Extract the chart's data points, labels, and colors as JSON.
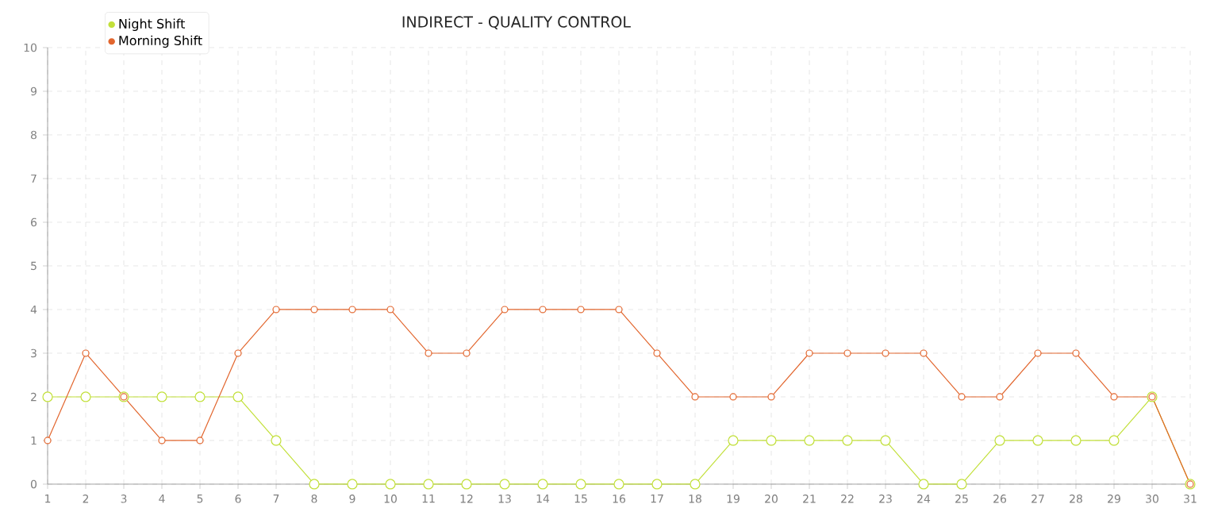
{
  "chart_data": {
    "type": "line",
    "title": "INDIRECT - QUALITY CONTROL",
    "x": [
      1,
      2,
      3,
      4,
      5,
      6,
      7,
      8,
      9,
      10,
      11,
      12,
      13,
      14,
      15,
      16,
      17,
      18,
      19,
      20,
      21,
      22,
      23,
      24,
      25,
      26,
      27,
      28,
      29,
      30,
      31
    ],
    "series": [
      {
        "name": "Night Shift",
        "color": "#c2e03a",
        "values": [
          2,
          2,
          2,
          2,
          2,
          2,
          1,
          0,
          0,
          0,
          0,
          0,
          0,
          0,
          0,
          0,
          0,
          0,
          1,
          1,
          1,
          1,
          1,
          0,
          0,
          1,
          1,
          1,
          1,
          2,
          0
        ]
      },
      {
        "name": "Morning Shift",
        "color": "#e2662e",
        "values": [
          1,
          3,
          2,
          1,
          1,
          3,
          4,
          4,
          4,
          4,
          3,
          3,
          4,
          4,
          4,
          4,
          3,
          2,
          2,
          2,
          3,
          3,
          3,
          3,
          2,
          2,
          3,
          3,
          2,
          2,
          0
        ]
      }
    ],
    "xlim": [
      1,
      31
    ],
    "xticks": [
      1,
      2,
      3,
      4,
      5,
      6,
      7,
      8,
      9,
      10,
      11,
      12,
      13,
      14,
      15,
      16,
      17,
      18,
      19,
      20,
      21,
      22,
      23,
      24,
      25,
      26,
      27,
      28,
      29,
      30,
      31
    ],
    "ylim": [
      0,
      10
    ],
    "yticks": [
      0,
      1,
      2,
      3,
      4,
      5,
      6,
      7,
      8,
      9,
      10
    ],
    "grid": true,
    "legend": "top left",
    "marker": "circle",
    "line_style": "solid"
  }
}
